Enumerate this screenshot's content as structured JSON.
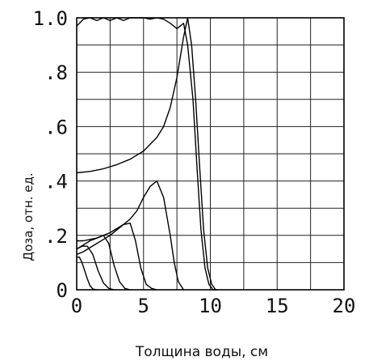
{
  "chart_data": {
    "type": "line",
    "xlabel": "Толщина воды, см",
    "ylabel": "Доза, отн. ед.",
    "xlim": [
      0,
      20
    ],
    "ylim": [
      0,
      1.0
    ],
    "grid": true,
    "x_ticks": [
      "0",
      "5",
      "10",
      "15",
      "20"
    ],
    "y_ticks": [
      "0",
      ".2",
      ".4",
      ".6",
      ".8",
      "1.0"
    ],
    "series": [
      {
        "x": [
          0,
          0.5,
          1,
          1.5,
          2,
          2.5,
          3,
          3.5,
          4,
          4.5,
          5,
          5.5,
          6,
          6.5,
          7,
          7.5,
          8,
          8.3,
          8.7,
          9.0,
          9.3,
          9.6,
          9.9,
          10.2,
          10.5
        ],
        "y": [
          0.97,
          0.995,
          1.0,
          0.99,
          1.0,
          0.99,
          1.0,
          0.99,
          1.0,
          1.0,
          1.0,
          0.995,
          1.0,
          0.995,
          0.98,
          0.96,
          0.98,
          0.9,
          0.7,
          0.45,
          0.22,
          0.08,
          0.02,
          0.0,
          0.0
        ]
      },
      {
        "x": [
          0,
          1,
          2,
          3,
          4,
          5,
          6,
          6.5,
          7,
          7.5,
          8,
          8.3,
          8.6,
          8.9,
          9.2,
          9.5,
          9.8,
          10.1,
          10.4
        ],
        "y": [
          0.43,
          0.435,
          0.445,
          0.46,
          0.48,
          0.51,
          0.56,
          0.6,
          0.67,
          0.78,
          0.93,
          1.0,
          0.9,
          0.7,
          0.45,
          0.22,
          0.08,
          0.02,
          0.0
        ]
      },
      {
        "x": [
          0,
          0.5,
          1,
          1.5,
          2,
          2.5,
          3,
          3.5,
          4,
          4.5,
          5,
          5.5,
          6,
          6.5,
          7,
          7.3,
          7.6,
          8.0
        ],
        "y": [
          0.18,
          0.18,
          0.185,
          0.19,
          0.2,
          0.21,
          0.225,
          0.24,
          0.26,
          0.29,
          0.34,
          0.38,
          0.4,
          0.34,
          0.2,
          0.1,
          0.03,
          0.0
        ]
      },
      {
        "x": [
          0,
          0.5,
          1,
          1.5,
          2,
          2.5,
          3,
          3.5,
          4,
          4.4,
          4.8,
          5.2,
          5.6,
          6.0
        ],
        "y": [
          0.13,
          0.14,
          0.155,
          0.17,
          0.185,
          0.2,
          0.22,
          0.24,
          0.245,
          0.18,
          0.08,
          0.02,
          0.005,
          0.0
        ]
      },
      {
        "x": [
          0,
          0.5,
          1,
          1.5,
          2,
          2.4,
          2.8,
          3.2,
          3.6,
          4.0
        ],
        "y": [
          0.15,
          0.165,
          0.18,
          0.19,
          0.2,
          0.17,
          0.09,
          0.03,
          0.005,
          0.0
        ]
      },
      {
        "x": [
          0,
          0.4,
          0.8,
          1.2,
          1.6,
          2.0,
          2.4,
          2.8
        ],
        "y": [
          0.15,
          0.16,
          0.16,
          0.13,
          0.07,
          0.025,
          0.005,
          0.0
        ]
      },
      {
        "x": [
          0,
          0.2,
          0.4,
          0.6,
          0.8,
          1.0,
          1.2,
          1.5
        ],
        "y": [
          0.12,
          0.12,
          0.1,
          0.07,
          0.04,
          0.015,
          0.003,
          0.0
        ]
      }
    ]
  }
}
